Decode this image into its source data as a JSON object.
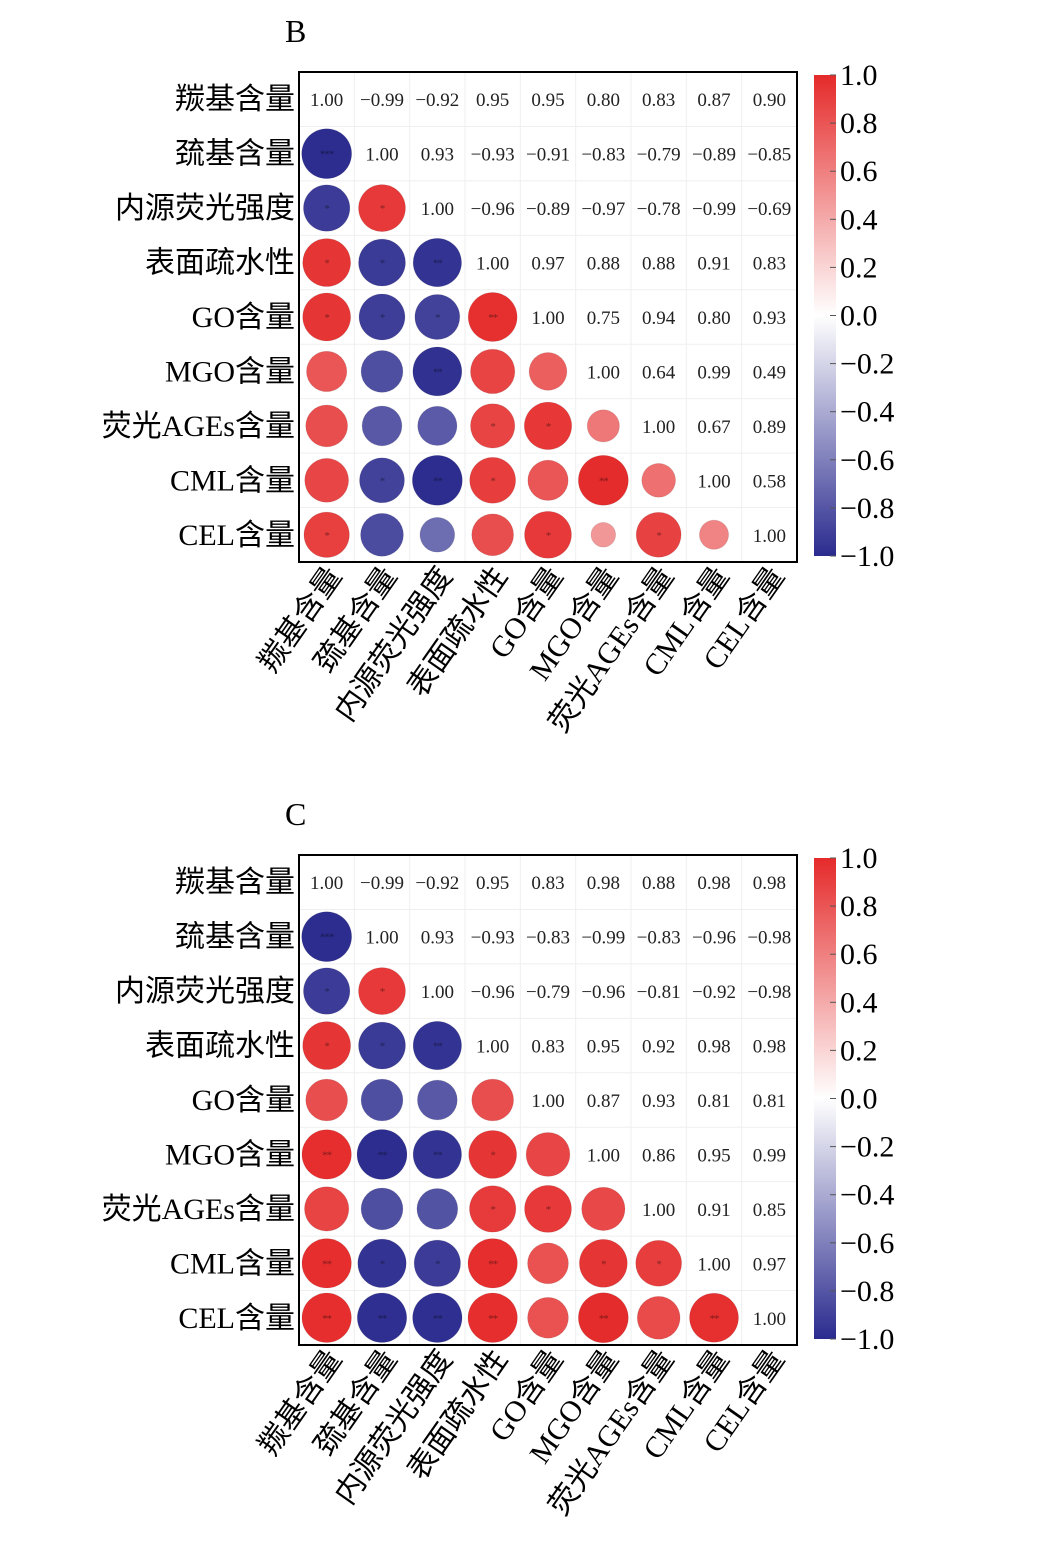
{
  "chart_data": [
    {
      "type": "heatmap",
      "panel_label": "B",
      "labels": [
        "羰基含量",
        "巯基含量",
        "内源荧光强度",
        "表面疏水性",
        "GO含量",
        "MGO含量",
        "荧光AGEs含量",
        "CML含量",
        "CEL含量"
      ],
      "value_limits": [
        -1,
        1
      ],
      "colorbar_ticks": [
        "1.0",
        "0.8",
        "0.6",
        "0.4",
        "0.2",
        "0.0",
        "−0.2",
        "−0.4",
        "−0.6",
        "−0.8",
        "−1.0"
      ],
      "colors": {
        "positive": "#e52a2a",
        "neutral": "#ffffff",
        "negative": "#2b2b8f"
      },
      "lower_marker": "circle",
      "upper_marker": "text",
      "matrix": [
        [
          1.0,
          -0.99,
          -0.92,
          0.95,
          0.95,
          0.8,
          0.83,
          0.87,
          0.9
        ],
        [
          -0.99,
          1.0,
          0.93,
          -0.93,
          -0.91,
          -0.83,
          -0.79,
          -0.89,
          -0.85
        ],
        [
          -0.92,
          0.93,
          1.0,
          -0.96,
          -0.89,
          -0.97,
          -0.78,
          -0.99,
          -0.69
        ],
        [
          0.95,
          -0.93,
          -0.96,
          1.0,
          0.97,
          0.88,
          0.88,
          0.91,
          0.83
        ],
        [
          0.95,
          -0.91,
          -0.89,
          0.97,
          1.0,
          0.75,
          0.94,
          0.8,
          0.93
        ],
        [
          0.8,
          -0.83,
          -0.97,
          0.88,
          0.75,
          1.0,
          0.64,
          0.99,
          0.49
        ],
        [
          0.83,
          -0.79,
          -0.78,
          0.88,
          0.94,
          0.64,
          1.0,
          0.67,
          0.89
        ],
        [
          0.87,
          -0.89,
          -0.99,
          0.91,
          0.8,
          0.99,
          0.67,
          1.0,
          0.58
        ],
        [
          0.9,
          -0.85,
          -0.69,
          0.83,
          0.93,
          0.49,
          0.89,
          0.58,
          1.0
        ]
      ],
      "upper_text": [
        [
          "1.00",
          "−0.99",
          "−0.92",
          "0.95",
          "0.95",
          "0.80",
          "0.83",
          "0.87",
          "0.90"
        ],
        [
          "",
          "1.00",
          "0.93",
          "−0.93",
          "−0.91",
          "−0.83",
          "−0.79",
          "−0.89",
          "−0.85"
        ],
        [
          "",
          "",
          "1.00",
          "−0.96",
          "−0.89",
          "−0.97",
          "−0.78",
          "−0.99",
          "−0.69"
        ],
        [
          "",
          "",
          "",
          "1.00",
          "0.97",
          "0.88",
          "0.88",
          "0.91",
          "0.83"
        ],
        [
          "",
          "",
          "",
          "",
          "1.00",
          "0.75",
          "0.94",
          "0.80",
          "0.93"
        ],
        [
          "",
          "",
          "",
          "",
          "",
          "1.00",
          "0.64",
          "0.99",
          "0.49"
        ],
        [
          "",
          "",
          "",
          "",
          "",
          "",
          "1.00",
          "0.67",
          "0.89"
        ],
        [
          "",
          "",
          "",
          "",
          "",
          "",
          "",
          "1.00",
          "0.58"
        ],
        [
          "",
          "",
          "",
          "",
          "",
          "",
          "",
          "",
          "1.00"
        ]
      ],
      "significance": [
        [
          "",
          "",
          "",
          "",
          "",
          "",
          "",
          "",
          ""
        ],
        [
          "***",
          "",
          "",
          "",
          "",
          "",
          "",
          "",
          ""
        ],
        [
          "*",
          "*",
          "",
          "",
          "",
          "",
          "",
          "",
          ""
        ],
        [
          "*",
          "*",
          "**",
          "",
          "",
          "",
          "",
          "",
          ""
        ],
        [
          "*",
          "*",
          "*",
          "**",
          "",
          "",
          "",
          "",
          ""
        ],
        [
          "",
          "",
          "**",
          "",
          "",
          "",
          "",
          "",
          ""
        ],
        [
          "",
          "",
          "",
          "*",
          "*",
          "",
          "",
          "",
          ""
        ],
        [
          "",
          "*",
          "**",
          "*",
          "",
          "**",
          "",
          "",
          ""
        ],
        [
          "*",
          "",
          "",
          "",
          "*",
          "",
          "*",
          "",
          ""
        ]
      ]
    },
    {
      "type": "heatmap",
      "panel_label": "C",
      "labels": [
        "羰基含量",
        "巯基含量",
        "内源荧光强度",
        "表面疏水性",
        "GO含量",
        "MGO含量",
        "荧光AGEs含量",
        "CML含量",
        "CEL含量"
      ],
      "value_limits": [
        -1,
        1
      ],
      "colorbar_ticks": [
        "1.0",
        "0.8",
        "0.6",
        "0.4",
        "0.2",
        "0.0",
        "−0.2",
        "−0.4",
        "−0.6",
        "−0.8",
        "−1.0"
      ],
      "colors": {
        "positive": "#e52a2a",
        "neutral": "#ffffff",
        "negative": "#2b2b8f"
      },
      "lower_marker": "circle",
      "upper_marker": "text",
      "matrix": [
        [
          1.0,
          -0.99,
          -0.92,
          0.95,
          0.83,
          0.98,
          0.88,
          0.98,
          0.98
        ],
        [
          -0.99,
          1.0,
          0.93,
          -0.93,
          -0.83,
          -0.99,
          -0.83,
          -0.96,
          -0.98
        ],
        [
          -0.92,
          0.93,
          1.0,
          -0.96,
          -0.79,
          -0.96,
          -0.81,
          -0.92,
          -0.98
        ],
        [
          0.95,
          -0.93,
          -0.96,
          1.0,
          0.83,
          0.95,
          0.92,
          0.98,
          0.98
        ],
        [
          0.83,
          -0.83,
          -0.79,
          0.83,
          1.0,
          0.87,
          0.93,
          0.81,
          0.81
        ],
        [
          0.98,
          -0.99,
          -0.96,
          0.95,
          0.87,
          1.0,
          0.86,
          0.95,
          0.99
        ],
        [
          0.88,
          -0.83,
          -0.81,
          0.92,
          0.93,
          0.86,
          1.0,
          0.91,
          0.85
        ],
        [
          0.98,
          -0.96,
          -0.92,
          0.98,
          0.81,
          0.95,
          0.91,
          1.0,
          0.97
        ],
        [
          0.98,
          -0.98,
          -0.98,
          0.98,
          0.81,
          0.99,
          0.85,
          0.97,
          1.0
        ]
      ],
      "upper_text": [
        [
          "1.00",
          "−0.99",
          "−0.92",
          "0.95",
          "0.83",
          "0.98",
          "0.88",
          "0.98",
          "0.98"
        ],
        [
          "",
          "1.00",
          "0.93",
          "−0.93",
          "−0.83",
          "−0.99",
          "−0.83",
          "−0.96",
          "−0.98"
        ],
        [
          "",
          "",
          "1.00",
          "−0.96",
          "−0.79",
          "−0.96",
          "−0.81",
          "−0.92",
          "−0.98"
        ],
        [
          "",
          "",
          "",
          "1.00",
          "0.83",
          "0.95",
          "0.92",
          "0.98",
          "0.98"
        ],
        [
          "",
          "",
          "",
          "",
          "1.00",
          "0.87",
          "0.93",
          "0.81",
          "0.81"
        ],
        [
          "",
          "",
          "",
          "",
          "",
          "1.00",
          "0.86",
          "0.95",
          "0.99"
        ],
        [
          "",
          "",
          "",
          "",
          "",
          "",
          "1.00",
          "0.91",
          "0.85"
        ],
        [
          "",
          "",
          "",
          "",
          "",
          "",
          "",
          "1.00",
          "0.97"
        ],
        [
          "",
          "",
          "",
          "",
          "",
          "",
          "",
          "",
          "1.00"
        ]
      ],
      "significance": [
        [
          "",
          "",
          "",
          "",
          "",
          "",
          "",
          "",
          ""
        ],
        [
          "***",
          "",
          "",
          "",
          "",
          "",
          "",
          "",
          ""
        ],
        [
          "*",
          "*",
          "",
          "",
          "",
          "",
          "",
          "",
          ""
        ],
        [
          "*",
          "*",
          "**",
          "",
          "",
          "",
          "",
          "",
          ""
        ],
        [
          "",
          "",
          "",
          "",
          "",
          "",
          "",
          "",
          ""
        ],
        [
          "**",
          "**",
          "**",
          "*",
          "",
          "",
          "",
          "",
          ""
        ],
        [
          "",
          "",
          "",
          "*",
          "*",
          "",
          "",
          "",
          ""
        ],
        [
          "**",
          "*",
          "*",
          "**",
          "",
          "*",
          "*",
          "",
          ""
        ],
        [
          "**",
          "**",
          "**",
          "**",
          "",
          "**",
          "",
          "**",
          ""
        ]
      ]
    }
  ]
}
